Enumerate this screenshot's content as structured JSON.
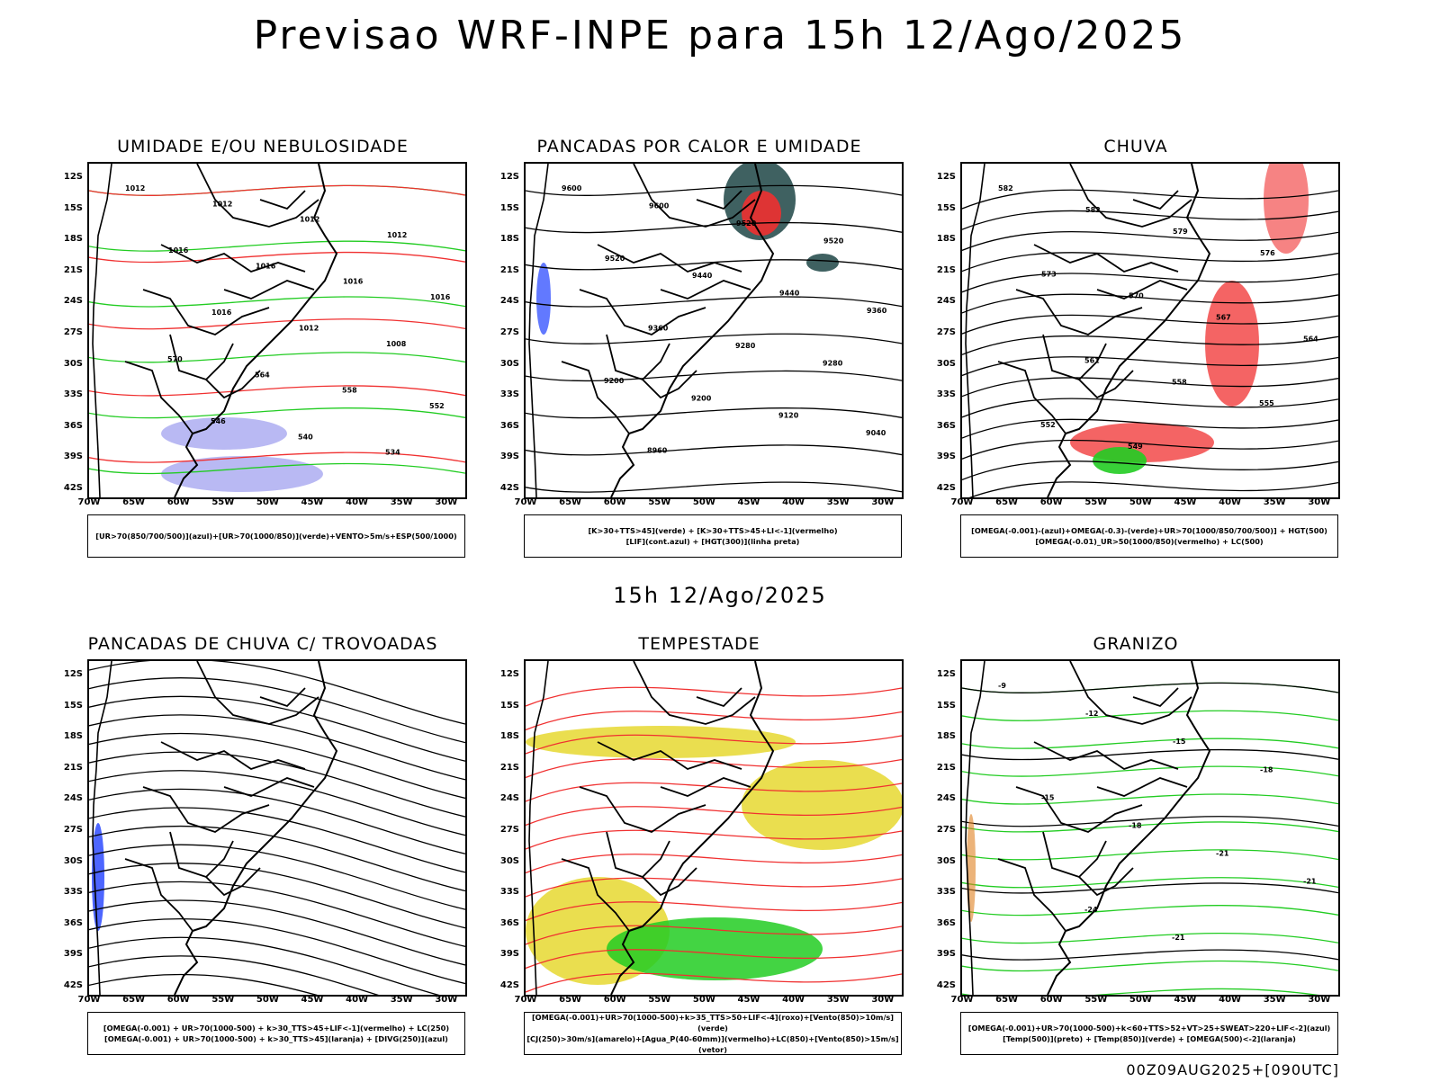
{
  "main_title": "Previsao WRF-INPE  para 15h 12/Ago/2025",
  "mid_title": "15h 12/Ago/2025",
  "footer": "00Z09AUG2025+[090UTC]",
  "lat_labels": [
    "12S",
    "15S",
    "18S",
    "21S",
    "24S",
    "27S",
    "30S",
    "33S",
    "36S",
    "39S",
    "42S"
  ],
  "lon_labels": [
    "70W",
    "65W",
    "60W",
    "55W",
    "50W",
    "45W",
    "40W",
    "35W",
    "30W"
  ],
  "panels": [
    {
      "title": "UMIDADE E/OU NEBULOSIDADE",
      "legend": [
        "[UR>70(850/700/500)](azul)+[UR>70(1000/850)](verde)+VENTO>5m/s+ESP(500/1000)"
      ],
      "contour_labels": [
        "1012",
        "1012",
        "1012",
        "1012",
        "1016",
        "1016",
        "1016",
        "1016",
        "1016",
        "1012",
        "1008",
        "570",
        "564",
        "558",
        "552",
        "546",
        "540",
        "534"
      ]
    },
    {
      "title": "PANCADAS POR CALOR E UMIDADE",
      "legend": [
        "[K>30+TTS>45](verde) + [K>30+TTS>45+LI<-1](vermelho)",
        "[LIF](cont.azul) + [HGT(300)](linha preta)"
      ],
      "contour_labels": [
        "9600",
        "9600",
        "9520",
        "9520",
        "9520",
        "9440",
        "9440",
        "9360",
        "9360",
        "9280",
        "9280",
        "9200",
        "9200",
        "9120",
        "9040",
        "8960"
      ]
    },
    {
      "title": "CHUVA",
      "legend": [
        "[OMEGA(-0.001)-(azul)+OMEGA(-0.3)-(verde)+UR>70(1000/850/700/500)] + HGT(500)",
        "[OMEGA(-0.01)_UR>50(1000/850)(vermelho) + LC(500)"
      ],
      "contour_labels": [
        "582",
        "582",
        "579",
        "576",
        "573",
        "570",
        "567",
        "564",
        "561",
        "558",
        "555",
        "552",
        "549"
      ]
    },
    {
      "title": "PANCADAS DE CHUVA C/ TROVOADAS",
      "legend": [
        "[OMEGA(-0.001) + UR>70(1000-500) + k>30_TTS>45+LIF<-1](vermelho) + LC(250)",
        "[OMEGA(-0.001) + UR>70(1000-500) + k>30_TTS>45](laranja) + [DIVG(250)](azul)"
      ],
      "contour_labels": []
    },
    {
      "title": "TEMPESTADE",
      "legend": [
        "[OMEGA(-0.001)+UR>70(1000-500)+k>35_TTS>50+LIF<-4](roxo)+[Vento(850)>10m/s](verde)",
        "[CJ(250)>30m/s](amarelo)+[Agua_P(40-60mm)](vermelho)+LC(850)+[Vento(850)>15m/s](vetor)"
      ],
      "contour_labels": []
    },
    {
      "title": "GRANIZO",
      "legend": [
        "[OMEGA(-0.001)+UR>70(1000-500)+k<60+TTS>52+VT>25+SWEAT>220+LIF<-2](azul)",
        "[Temp(500)](preto) + [Temp(850)](verde) + [OMEGA(500)<-2](laranja)"
      ],
      "contour_labels": [
        "-9",
        "-12",
        "-15",
        "-18",
        "-15",
        "-18",
        "-21",
        "-21",
        "-24",
        "-21"
      ]
    }
  ],
  "colors": {
    "red": "#f03030",
    "green": "#22cc22",
    "blue": "#2040ff",
    "lavender": "#a8a8f0",
    "yellow": "#e6d830",
    "darkteal": "#2a5050",
    "orange": "#e08020"
  }
}
